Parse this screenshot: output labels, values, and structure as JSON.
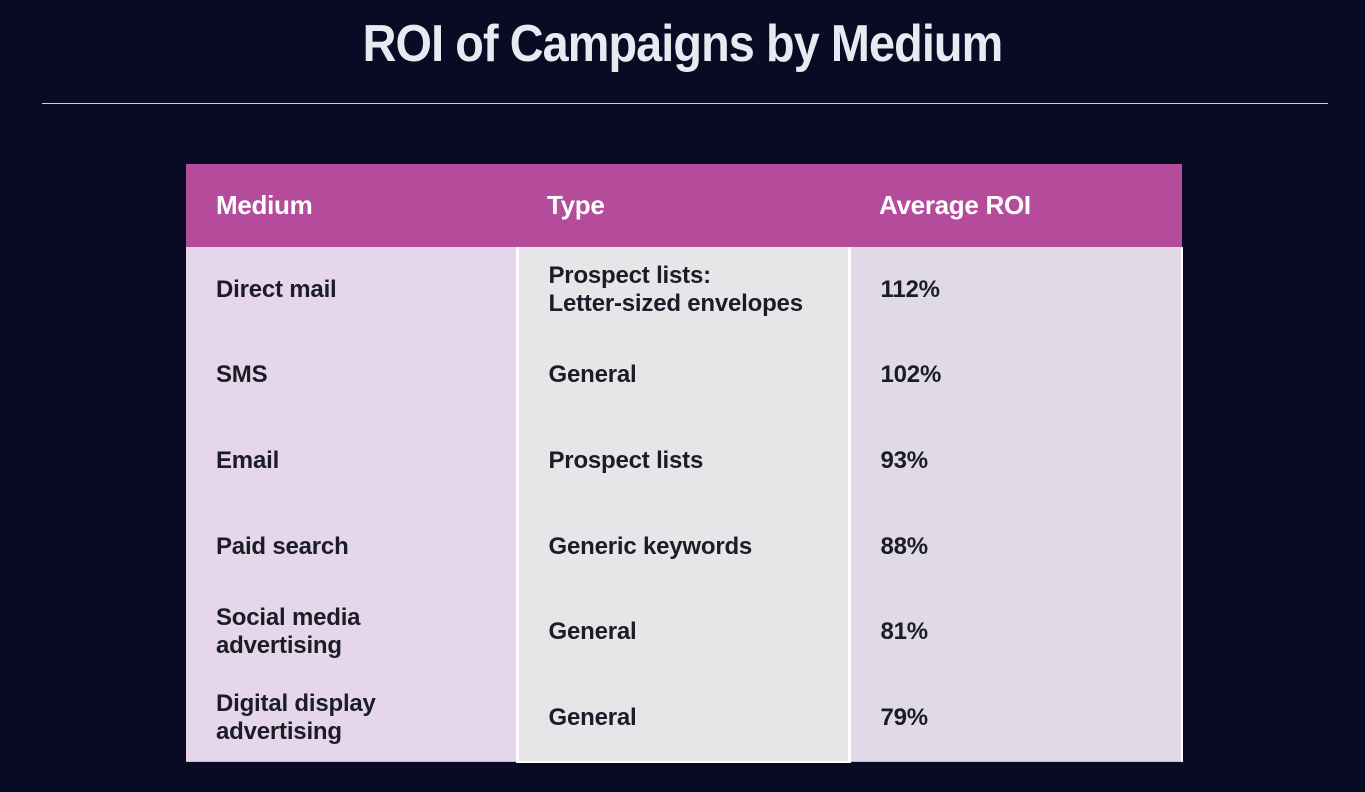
{
  "title": "ROI of Campaigns by Medium",
  "table": {
    "headers": [
      "Medium",
      "Type",
      "Average ROI"
    ],
    "rows": [
      {
        "medium": "Direct mail",
        "type": "Prospect lists:",
        "type_line2": "Letter-sized envelopes",
        "roi": "112%"
      },
      {
        "medium": "SMS",
        "type": "General",
        "type_line2": "",
        "roi": "102%"
      },
      {
        "medium": "Email",
        "type": "Prospect lists",
        "type_line2": "",
        "roi": "93%"
      },
      {
        "medium": "Paid search",
        "type": "Generic keywords",
        "type_line2": "",
        "roi": "88%"
      },
      {
        "medium": "Social media advertising",
        "type": "General",
        "type_line2": "",
        "roi": "81%"
      },
      {
        "medium": "Digital display advertising",
        "type": "General",
        "type_line2": "",
        "roi": "79%"
      }
    ]
  },
  "colors": {
    "background": "#090a24",
    "header": "#b44b9b",
    "medium_column": "#e5d7e9",
    "type_column": "#e6e6e9",
    "roi_column": "#dfd9e8"
  }
}
